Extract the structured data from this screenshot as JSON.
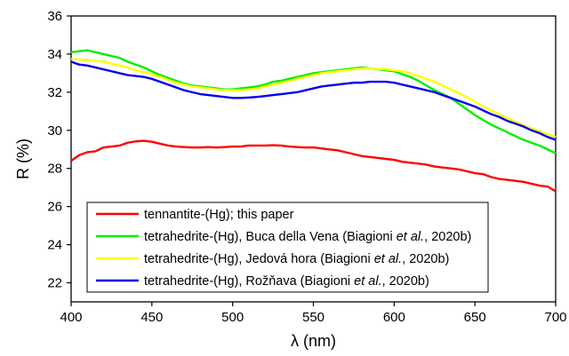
{
  "chart_data": {
    "type": "line",
    "xlabel": "λ (nm)",
    "ylabel": "R (%)",
    "xlim": [
      400,
      700
    ],
    "ylim": [
      21,
      36
    ],
    "xticks": [
      400,
      450,
      500,
      550,
      600,
      650,
      700
    ],
    "yticks": [
      22,
      24,
      26,
      28,
      30,
      32,
      34,
      36
    ],
    "grid": false,
    "legend_position": "bottom-left",
    "series": [
      {
        "name": "tennantite-(Hg); this paper",
        "legend_parts": [
          {
            "text": "tennantite-(Hg); this paper",
            "italic": false
          }
        ],
        "color": "#ff0000",
        "x": [
          400,
          405,
          410,
          415,
          420,
          425,
          430,
          435,
          440,
          445,
          450,
          455,
          460,
          465,
          470,
          475,
          480,
          485,
          490,
          495,
          500,
          505,
          510,
          515,
          520,
          525,
          530,
          535,
          540,
          545,
          550,
          555,
          560,
          565,
          570,
          575,
          580,
          585,
          590,
          595,
          600,
          605,
          610,
          615,
          620,
          625,
          630,
          635,
          640,
          645,
          650,
          655,
          660,
          665,
          670,
          675,
          680,
          685,
          690,
          695,
          700
        ],
        "y": [
          28.4,
          28.7,
          28.85,
          28.9,
          29.1,
          29.15,
          29.2,
          29.35,
          29.42,
          29.45,
          29.4,
          29.3,
          29.2,
          29.15,
          29.12,
          29.1,
          29.1,
          29.12,
          29.1,
          29.12,
          29.15,
          29.15,
          29.2,
          29.2,
          29.2,
          29.22,
          29.2,
          29.15,
          29.12,
          29.1,
          29.1,
          29.05,
          29.0,
          28.95,
          28.85,
          28.75,
          28.65,
          28.6,
          28.55,
          28.5,
          28.45,
          28.35,
          28.3,
          28.25,
          28.2,
          28.1,
          28.05,
          28.0,
          27.95,
          27.85,
          27.75,
          27.7,
          27.55,
          27.45,
          27.4,
          27.35,
          27.3,
          27.2,
          27.1,
          27.05,
          26.8
        ]
      },
      {
        "name": "tetrahedrite-(Hg), Buca della Vena (Biagioni et al., 2020b)",
        "legend_parts": [
          {
            "text": "tetrahedrite-(Hg), Buca della Vena (Biagioni ",
            "italic": false
          },
          {
            "text": "et al.",
            "italic": true
          },
          {
            "text": ", 2020b)",
            "italic": false
          }
        ],
        "color": "#00ee00",
        "x": [
          400,
          405,
          410,
          415,
          420,
          425,
          430,
          435,
          440,
          445,
          450,
          455,
          460,
          465,
          470,
          475,
          480,
          485,
          490,
          495,
          500,
          505,
          510,
          515,
          520,
          525,
          530,
          535,
          540,
          545,
          550,
          555,
          560,
          565,
          570,
          575,
          580,
          585,
          590,
          595,
          600,
          605,
          610,
          615,
          620,
          625,
          630,
          635,
          640,
          645,
          650,
          655,
          660,
          665,
          670,
          675,
          680,
          685,
          690,
          695,
          700
        ],
        "y": [
          34.1,
          34.15,
          34.2,
          34.1,
          34.0,
          33.9,
          33.8,
          33.6,
          33.45,
          33.3,
          33.1,
          32.9,
          32.75,
          32.6,
          32.45,
          32.35,
          32.3,
          32.25,
          32.2,
          32.15,
          32.15,
          32.2,
          32.25,
          32.3,
          32.4,
          32.55,
          32.6,
          32.7,
          32.8,
          32.9,
          33.0,
          33.05,
          33.1,
          33.15,
          33.2,
          33.25,
          33.3,
          33.25,
          33.2,
          33.15,
          33.1,
          32.95,
          32.8,
          32.6,
          32.35,
          32.1,
          31.9,
          31.7,
          31.4,
          31.1,
          30.8,
          30.55,
          30.3,
          30.1,
          29.9,
          29.7,
          29.5,
          29.35,
          29.2,
          29.0,
          28.8
        ]
      },
      {
        "name": "tetrahedrite-(Hg), Jedová hora (Biagioni et al., 2020b)",
        "legend_parts": [
          {
            "text": "tetrahedrite-(Hg), Jedová hora (Biagioni ",
            "italic": false
          },
          {
            "text": "et al.",
            "italic": true
          },
          {
            "text": ", 2020b)",
            "italic": false
          }
        ],
        "color": "#ffff00",
        "x": [
          400,
          405,
          410,
          415,
          420,
          425,
          430,
          435,
          440,
          445,
          450,
          455,
          460,
          465,
          470,
          475,
          480,
          485,
          490,
          495,
          500,
          505,
          510,
          515,
          520,
          525,
          530,
          535,
          540,
          545,
          550,
          555,
          560,
          565,
          570,
          575,
          580,
          585,
          590,
          595,
          600,
          605,
          610,
          615,
          620,
          625,
          630,
          635,
          640,
          645,
          650,
          655,
          660,
          665,
          670,
          675,
          680,
          685,
          690,
          695,
          700
        ],
        "y": [
          33.75,
          33.7,
          33.7,
          33.65,
          33.6,
          33.5,
          33.4,
          33.3,
          33.15,
          33.05,
          32.95,
          32.8,
          32.65,
          32.5,
          32.4,
          32.3,
          32.25,
          32.2,
          32.15,
          32.12,
          32.1,
          32.12,
          32.15,
          32.2,
          32.3,
          32.4,
          32.5,
          32.6,
          32.7,
          32.8,
          32.9,
          33.0,
          33.05,
          33.1,
          33.15,
          33.2,
          33.25,
          33.25,
          33.22,
          33.2,
          33.15,
          33.1,
          33.0,
          32.85,
          32.7,
          32.55,
          32.35,
          32.15,
          31.95,
          31.75,
          31.5,
          31.25,
          31.05,
          30.85,
          30.65,
          30.45,
          30.25,
          30.1,
          29.95,
          29.8,
          29.65
        ]
      },
      {
        "name": "tetrahedrite-(Hg), Rožňava (Biagioni et al., 2020b)",
        "legend_parts": [
          {
            "text": "tetrahedrite-(Hg), Rožňava (Biagioni ",
            "italic": false
          },
          {
            "text": "et al.",
            "italic": true
          },
          {
            "text": ", 2020b)",
            "italic": false
          }
        ],
        "color": "#0000ee",
        "x": [
          400,
          405,
          410,
          415,
          420,
          425,
          430,
          435,
          440,
          445,
          450,
          455,
          460,
          465,
          470,
          475,
          480,
          485,
          490,
          495,
          500,
          505,
          510,
          515,
          520,
          525,
          530,
          535,
          540,
          545,
          550,
          555,
          560,
          565,
          570,
          575,
          580,
          585,
          590,
          595,
          600,
          605,
          610,
          615,
          620,
          625,
          630,
          635,
          640,
          645,
          650,
          655,
          660,
          665,
          670,
          675,
          680,
          685,
          690,
          695,
          700
        ],
        "y": [
          33.6,
          33.45,
          33.4,
          33.3,
          33.2,
          33.1,
          33.0,
          32.9,
          32.85,
          32.8,
          32.7,
          32.55,
          32.4,
          32.25,
          32.1,
          32.0,
          31.9,
          31.85,
          31.8,
          31.75,
          31.7,
          31.7,
          31.72,
          31.75,
          31.8,
          31.85,
          31.9,
          31.95,
          32.0,
          32.1,
          32.2,
          32.3,
          32.35,
          32.4,
          32.45,
          32.5,
          32.5,
          32.55,
          32.55,
          32.55,
          32.5,
          32.4,
          32.3,
          32.2,
          32.1,
          32.0,
          31.85,
          31.7,
          31.55,
          31.4,
          31.25,
          31.05,
          30.85,
          30.7,
          30.5,
          30.35,
          30.2,
          30.0,
          29.85,
          29.65,
          29.5
        ]
      }
    ]
  }
}
